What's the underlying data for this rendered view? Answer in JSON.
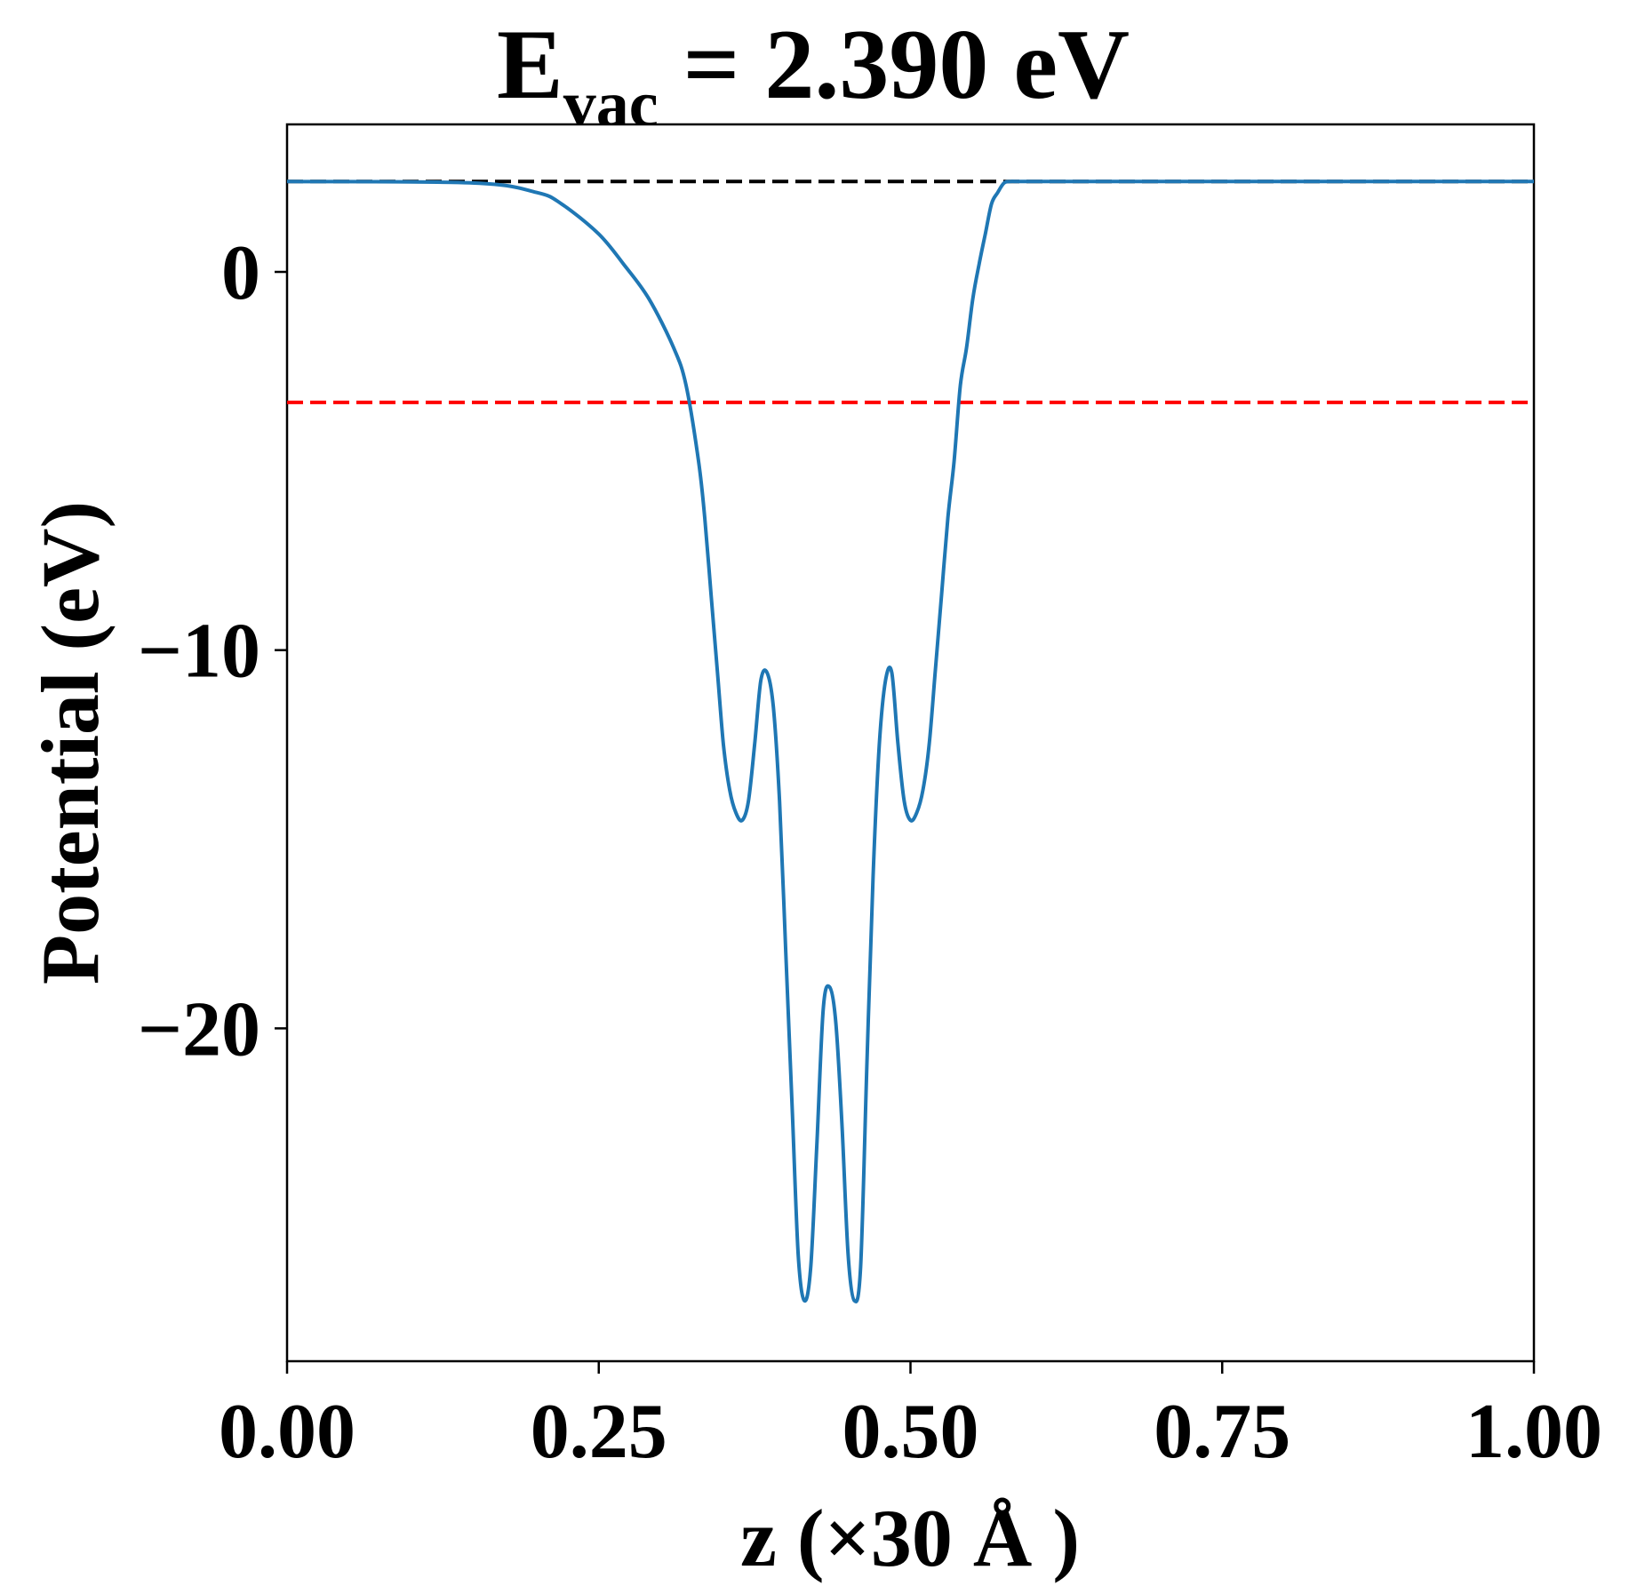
{
  "chart_data": {
    "type": "line",
    "title": {
      "main": "E",
      "subscript": "vac",
      "rest": " = 2.390 eV"
    },
    "xlabel": "z (×30 Å )",
    "ylabel": "Potential (eV)",
    "xlim": [
      0.0,
      1.0
    ],
    "ylim": [
      -28.8,
      3.9
    ],
    "x_ticks": [
      0.0,
      0.25,
      0.5,
      0.75,
      1.0
    ],
    "x_tick_labels": [
      "0.00",
      "0.25",
      "0.50",
      "0.75",
      "1.00"
    ],
    "y_ticks": [
      0,
      -10,
      -20
    ],
    "y_tick_labels": [
      "0",
      "−10",
      "−20"
    ],
    "grid": false,
    "reference_lines": [
      {
        "kind": "horizontal",
        "y": 2.39,
        "color": "#000000",
        "style": "dashed"
      },
      {
        "kind": "horizontal",
        "y": -3.45,
        "color": "#ff0000",
        "style": "dashed"
      }
    ],
    "series": [
      {
        "color": "#1f77b4",
        "x": [
          0.0,
          0.15,
          0.2,
          0.22,
          0.25,
          0.27,
          0.29,
          0.31,
          0.32,
          0.33,
          0.335,
          0.34,
          0.345,
          0.35,
          0.355,
          0.36,
          0.365,
          0.37,
          0.375,
          0.38,
          0.385,
          0.39,
          0.395,
          0.4,
          0.405,
          0.41,
          0.415,
          0.42,
          0.425,
          0.43,
          0.435,
          0.44,
          0.445,
          0.45,
          0.455,
          0.46,
          0.465,
          0.47,
          0.475,
          0.48,
          0.485,
          0.49,
          0.495,
          0.5,
          0.505,
          0.51,
          0.515,
          0.52,
          0.525,
          0.53,
          0.535,
          0.54,
          0.545,
          0.55,
          0.555,
          0.56,
          0.565,
          0.57,
          0.575,
          0.58,
          0.585,
          0.59,
          0.595,
          0.6,
          0.61,
          0.62,
          0.64,
          0.66,
          0.69,
          0.72,
          0.75,
          0.8,
          1.0
        ],
        "y": [
          2.39,
          2.35,
          2.1,
          1.8,
          1.0,
          0.2,
          -0.7,
          -2.0,
          -3.0,
          -5.0,
          -6.5,
          -8.5,
          -10.5,
          -12.5,
          -13.7,
          -14.3,
          -14.5,
          -14.0,
          -12.5,
          -10.8,
          -10.6,
          -11.5,
          -14.0,
          -18.0,
          -22.0,
          -26.0,
          -27.2,
          -26.3,
          -23.0,
          -19.5,
          -18.9,
          -19.8,
          -22.5,
          -26.0,
          -27.2,
          -26.3,
          -21.0,
          -16.0,
          -12.5,
          -10.8,
          -10.6,
          -12.5,
          -14.0,
          -14.5,
          -14.3,
          -13.7,
          -12.5,
          -10.5,
          -8.5,
          -6.5,
          -5.0,
          -3.0,
          -2.0,
          -0.7,
          0.2,
          1.0,
          1.8,
          2.1,
          2.35,
          2.39,
          2.39,
          2.39,
          2.39,
          2.39,
          2.39,
          2.39,
          2.39,
          2.39,
          2.39,
          2.39,
          2.39,
          2.39,
          2.39
        ]
      }
    ]
  }
}
